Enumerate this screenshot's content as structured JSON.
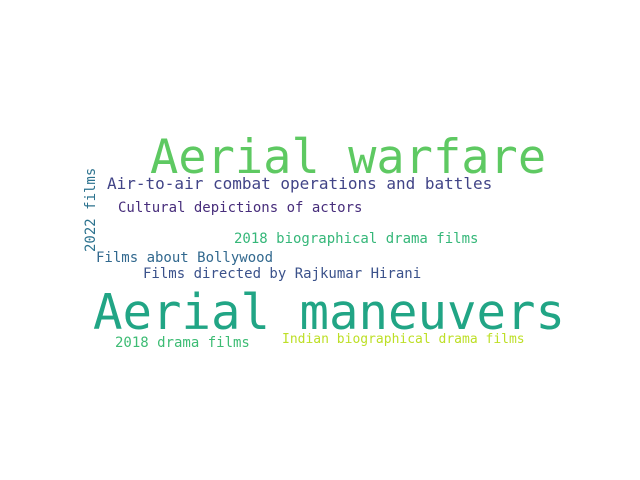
{
  "words": [
    {
      "text": "Aerial warfare",
      "color": "#5ec962"
    },
    {
      "text": "Air-to-air combat operations and battles",
      "color": "#414487"
    },
    {
      "text": "Cultural depictions of actors",
      "color": "#472d7b"
    },
    {
      "text": "2018 biographical drama films",
      "color": "#35b779"
    },
    {
      "text": "Films about Bollywood",
      "color": "#31688e"
    },
    {
      "text": "Films directed by Rajkumar Hirani",
      "color": "#3b528b"
    },
    {
      "text": "Aerial maneuvers",
      "color": "#21a585"
    },
    {
      "text": "2018 drama films",
      "color": "#3dbc74"
    },
    {
      "text": "Indian biographical drama films",
      "color": "#bddf26"
    },
    {
      "text": "2022 films",
      "color": "#2c728e"
    }
  ]
}
